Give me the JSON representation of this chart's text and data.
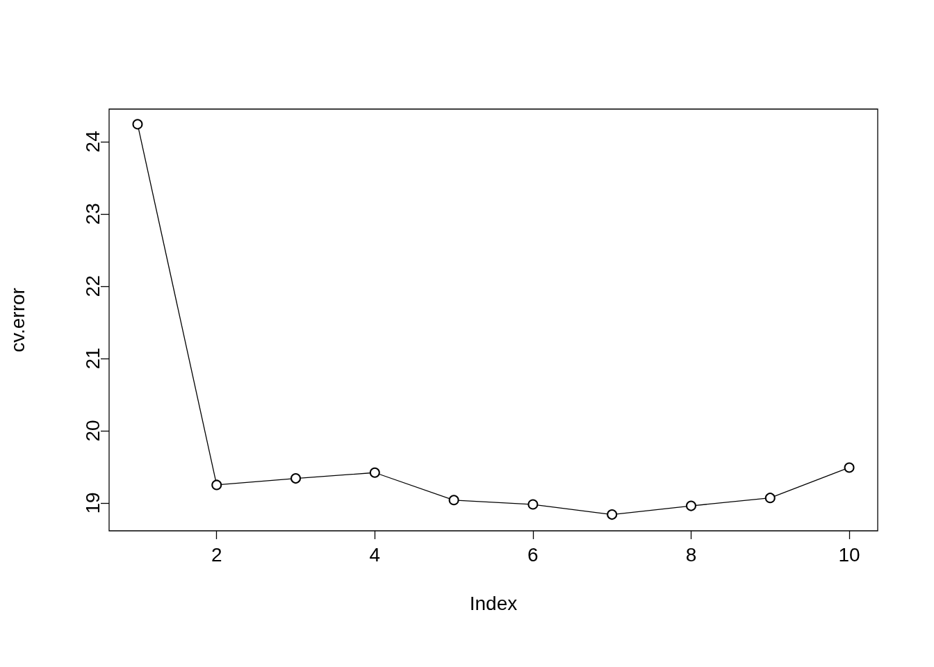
{
  "chart_data": {
    "type": "line",
    "xlabel": "Index",
    "ylabel": "cv.error",
    "x": [
      1,
      2,
      3,
      4,
      5,
      6,
      7,
      8,
      9,
      10
    ],
    "values": [
      24.24,
      19.25,
      19.34,
      19.42,
      19.04,
      18.98,
      18.84,
      18.96,
      19.07,
      19.49
    ],
    "color": "#000000",
    "marker": "circle",
    "line_style": "solid",
    "grid": false,
    "xlim": [
      0.64,
      10.36
    ],
    "xticks": [
      2,
      4,
      6,
      8,
      10
    ],
    "ylim": [
      18.615,
      24.45
    ],
    "yticks": [
      19,
      20,
      21,
      22,
      23,
      24
    ]
  }
}
